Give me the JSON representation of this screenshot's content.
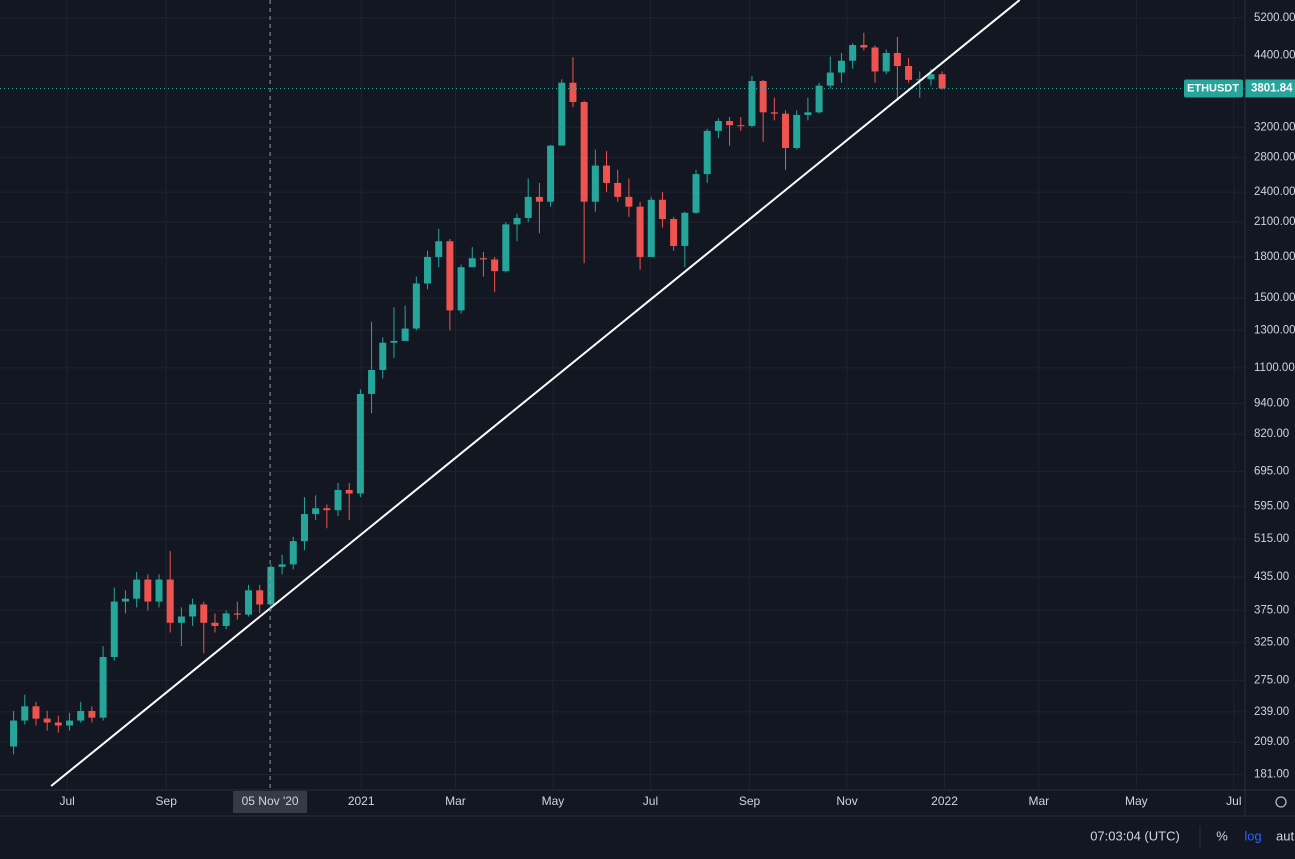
{
  "chart_data": {
    "type": "candlestick",
    "symbol": "ETHUSDT",
    "log_scale": true,
    "grid": true,
    "up_color": "#26a69a",
    "down_color": "#ef5350",
    "x": [
      "2020-05-25",
      "2020-06-01",
      "2020-06-08",
      "2020-06-15",
      "2020-06-22",
      "2020-06-29",
      "2020-07-06",
      "2020-07-13",
      "2020-07-20",
      "2020-07-27",
      "2020-08-03",
      "2020-08-10",
      "2020-08-17",
      "2020-08-24",
      "2020-08-31",
      "2020-09-07",
      "2020-09-14",
      "2020-09-21",
      "2020-09-28",
      "2020-10-05",
      "2020-10-12",
      "2020-10-19",
      "2020-10-26",
      "2020-11-02",
      "2020-11-09",
      "2020-11-16",
      "2020-11-23",
      "2020-11-30",
      "2020-12-07",
      "2020-12-14",
      "2020-12-21",
      "2020-12-28",
      "2021-01-04",
      "2021-01-11",
      "2021-01-18",
      "2021-01-25",
      "2021-02-01",
      "2021-02-08",
      "2021-02-15",
      "2021-02-22",
      "2021-03-01",
      "2021-03-08",
      "2021-03-15",
      "2021-03-22",
      "2021-03-29",
      "2021-04-05",
      "2021-04-12",
      "2021-04-19",
      "2021-04-26",
      "2021-05-03",
      "2021-05-10",
      "2021-05-17",
      "2021-05-24",
      "2021-05-31",
      "2021-06-07",
      "2021-06-14",
      "2021-06-21",
      "2021-06-28",
      "2021-07-05",
      "2021-07-12",
      "2021-07-19",
      "2021-07-26",
      "2021-08-02",
      "2021-08-09",
      "2021-08-16",
      "2021-08-23",
      "2021-08-30",
      "2021-09-06",
      "2021-09-13",
      "2021-09-20",
      "2021-09-27",
      "2021-10-04",
      "2021-10-11",
      "2021-10-18",
      "2021-10-25",
      "2021-11-01",
      "2021-11-08",
      "2021-11-15",
      "2021-11-22",
      "2021-11-29",
      "2021-12-06",
      "2021-12-13",
      "2021-12-20",
      "2021-12-27"
    ],
    "open": [
      205,
      230,
      245,
      232,
      228,
      225,
      230,
      240,
      233,
      305,
      390,
      395,
      430,
      390,
      430,
      355,
      365,
      385,
      355,
      350,
      370,
      368,
      410,
      385,
      455,
      460,
      510,
      575,
      590,
      585,
      640,
      630,
      980,
      1090,
      1230,
      1240,
      1310,
      1600,
      1800,
      1930,
      1420,
      1720,
      1790,
      1780,
      1690,
      2080,
      2140,
      2350,
      2300,
      2950,
      3900,
      3580,
      2300,
      2700,
      2500,
      2350,
      2250,
      1800,
      2320,
      2130,
      1890,
      2190,
      2600,
      3150,
      3290,
      3230,
      3220,
      3930,
      3420,
      3400,
      2920,
      3380,
      3420,
      3850,
      4080,
      4300,
      4610,
      4560,
      4100,
      4450,
      4200,
      3950,
      3960,
      4050
    ],
    "high": [
      240,
      258,
      250,
      240,
      235,
      238,
      250,
      245,
      320,
      415,
      410,
      445,
      440,
      440,
      488,
      380,
      395,
      390,
      370,
      375,
      390,
      420,
      420,
      460,
      480,
      520,
      620,
      625,
      600,
      660,
      660,
      1000,
      1350,
      1260,
      1440,
      1450,
      1650,
      1850,
      2040,
      1950,
      1740,
      1880,
      1840,
      1800,
      2100,
      2180,
      2550,
      2500,
      2960,
      3960,
      4370,
      3600,
      2900,
      2880,
      2650,
      2550,
      2300,
      2350,
      2400,
      2150,
      2200,
      2650,
      3180,
      3330,
      3350,
      3350,
      4020,
      3950,
      3650,
      3450,
      3450,
      3650,
      3900,
      4380,
      4450,
      4650,
      4870,
      4600,
      4520,
      4780,
      4350,
      4100,
      4150,
      4100
    ],
    "low": [
      198,
      226,
      225,
      220,
      218,
      220,
      228,
      228,
      230,
      300,
      370,
      380,
      375,
      380,
      340,
      320,
      350,
      310,
      340,
      345,
      360,
      365,
      370,
      375,
      440,
      450,
      490,
      560,
      540,
      570,
      560,
      620,
      900,
      1050,
      1150,
      1240,
      1300,
      1560,
      1720,
      1300,
      1400,
      1720,
      1650,
      1540,
      1680,
      1930,
      2100,
      2000,
      2250,
      2950,
      3500,
      1750,
      2200,
      2400,
      2300,
      2150,
      1700,
      1800,
      2050,
      1850,
      1720,
      2180,
      2500,
      3050,
      2950,
      3150,
      3200,
      3000,
      3300,
      2650,
      2900,
      3300,
      3400,
      3800,
      3900,
      4150,
      4500,
      3900,
      4050,
      3600,
      3900,
      3650,
      3850,
      3780
    ],
    "close": [
      230,
      245,
      232,
      228,
      225,
      230,
      240,
      233,
      305,
      390,
      395,
      430,
      390,
      430,
      355,
      365,
      385,
      355,
      350,
      370,
      368,
      410,
      385,
      455,
      460,
      510,
      575,
      590,
      585,
      640,
      630,
      980,
      1090,
      1230,
      1240,
      1310,
      1600,
      1800,
      1930,
      1420,
      1720,
      1790,
      1780,
      1690,
      2080,
      2140,
      2350,
      2300,
      2950,
      3900,
      3580,
      2300,
      2700,
      2500,
      2350,
      2250,
      1800,
      2320,
      2130,
      1890,
      2190,
      2600,
      3150,
      3290,
      3230,
      3220,
      3930,
      3420,
      3400,
      2920,
      3380,
      3420,
      3850,
      4080,
      4300,
      4610,
      4560,
      4100,
      4450,
      4200,
      3950,
      3960,
      4050,
      3801.84
    ],
    "xlim": [
      "2020-05-20",
      "2022-07-08"
    ],
    "xticks": [
      {
        "value": "2020-07-01",
        "label": "Jul"
      },
      {
        "value": "2020-09-01",
        "label": "Sep"
      },
      {
        "value": "2021-01-01",
        "label": "2021"
      },
      {
        "value": "2021-03-01",
        "label": "Mar"
      },
      {
        "value": "2021-05-01",
        "label": "May"
      },
      {
        "value": "2021-07-01",
        "label": "Jul"
      },
      {
        "value": "2021-09-01",
        "label": "Sep"
      },
      {
        "value": "2021-11-01",
        "label": "Nov"
      },
      {
        "value": "2022-01-01",
        "label": "2022"
      },
      {
        "value": "2022-03-01",
        "label": "Mar"
      },
      {
        "value": "2022-05-01",
        "label": "May"
      },
      {
        "value": "2022-07-01",
        "label": "Jul"
      }
    ],
    "ylim": [
      169,
      5630
    ],
    "yticks": [
      {
        "value": 181,
        "label": "181.00"
      },
      {
        "value": 209,
        "label": "209.00"
      },
      {
        "value": 239,
        "label": "239.00"
      },
      {
        "value": 275,
        "label": "275.00"
      },
      {
        "value": 325,
        "label": "325.00"
      },
      {
        "value": 375,
        "label": "375.00"
      },
      {
        "value": 435,
        "label": "435.00"
      },
      {
        "value": 515,
        "label": "515.00"
      },
      {
        "value": 595,
        "label": "595.00"
      },
      {
        "value": 695,
        "label": "695.00"
      },
      {
        "value": 820,
        "label": "820.00"
      },
      {
        "value": 940,
        "label": "940.00"
      },
      {
        "value": 1100,
        "label": "1100.00"
      },
      {
        "value": 1300,
        "label": "1300.00"
      },
      {
        "value": 1500,
        "label": "1500.00"
      },
      {
        "value": 1800,
        "label": "1800.00"
      },
      {
        "value": 2100,
        "label": "2100.00"
      },
      {
        "value": 2400,
        "label": "2400.00"
      },
      {
        "value": 2800,
        "label": "2800.00"
      },
      {
        "value": 3200,
        "label": "3200.00"
      },
      {
        "value": 4400,
        "label": "4400.00"
      },
      {
        "value": 5200,
        "label": "5200.00"
      }
    ],
    "trendline": [
      {
        "x": "2020-06-21",
        "y": 172
      },
      {
        "x": "2022-02-17",
        "y": 5630
      }
    ],
    "crosshair": {
      "x": "2020-11-05",
      "label": "05 Nov '20"
    },
    "clock": "07:03:04 (UTC)",
    "toolbar": [
      "%",
      "log",
      "aut"
    ]
  }
}
